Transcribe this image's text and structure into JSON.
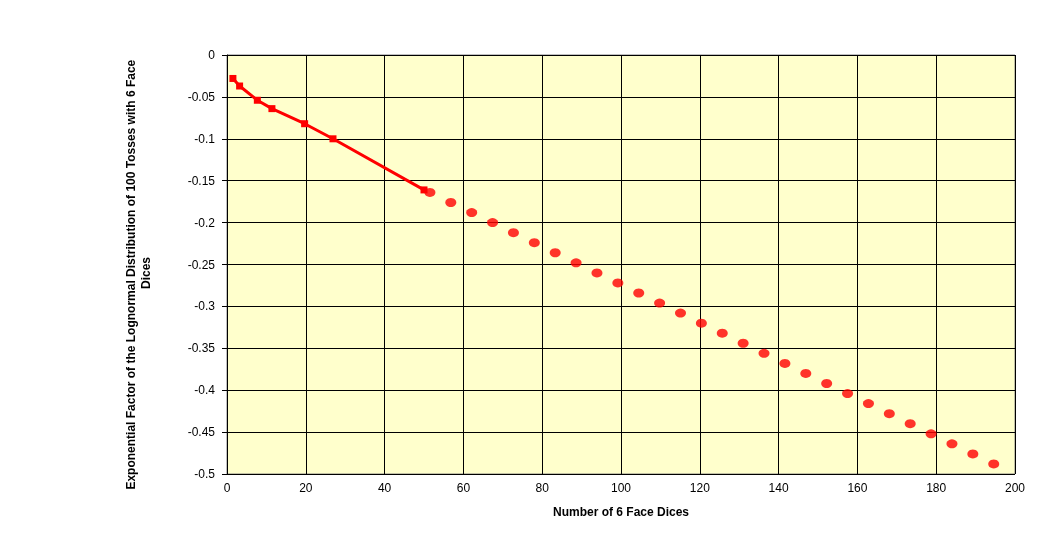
{
  "chart_data": {
    "type": "scatter",
    "xlabel": "Number of 6 Face Dices",
    "ylabel": "Exponential Factor of the Lognormal Distribution of 100 Tosses with 6 Face Dices",
    "xlim": [
      0,
      200
    ],
    "xticks": [
      0,
      20,
      40,
      60,
      80,
      100,
      120,
      140,
      160,
      180,
      200
    ],
    "ylim": [
      -0.5,
      0
    ],
    "yticks": [
      -0.5,
      -0.45,
      -0.4,
      -0.35,
      -0.3,
      -0.25,
      -0.2,
      -0.15,
      -0.1,
      -0.05,
      0
    ],
    "grid": true,
    "series": [
      {
        "type": "line",
        "marker": "square",
        "line_style": "solid",
        "color": "#ff0000",
        "x": [
          1.5,
          3.2,
          7.7,
          11.4,
          19.7,
          26.9,
          50
        ],
        "values": [
          -0.028,
          -0.037,
          -0.054,
          -0.064,
          -0.082,
          -0.1,
          -0.161
        ]
      },
      {
        "marker": "circle",
        "color": "#ff0000",
        "x": [
          51.5,
          56.8,
          62.1,
          67.4,
          72.7,
          78.0,
          83.3,
          88.6,
          93.9,
          99.2,
          104.5,
          109.8,
          115.1,
          120.4,
          125.7,
          131.0,
          136.3,
          141.6,
          146.9,
          152.2,
          157.5,
          162.8,
          168.1,
          173.4,
          178.7,
          184.0,
          189.3,
          194.6
        ],
        "values": [
          -0.164,
          -0.176,
          -0.188,
          -0.2,
          -0.212,
          -0.224,
          -0.236,
          -0.248,
          -0.26,
          -0.272,
          -0.284,
          -0.296,
          -0.308,
          -0.32,
          -0.332,
          -0.344,
          -0.356,
          -0.368,
          -0.38,
          -0.392,
          -0.404,
          -0.416,
          -0.428,
          -0.44,
          -0.452,
          -0.464,
          -0.476,
          -0.488
        ]
      }
    ]
  }
}
